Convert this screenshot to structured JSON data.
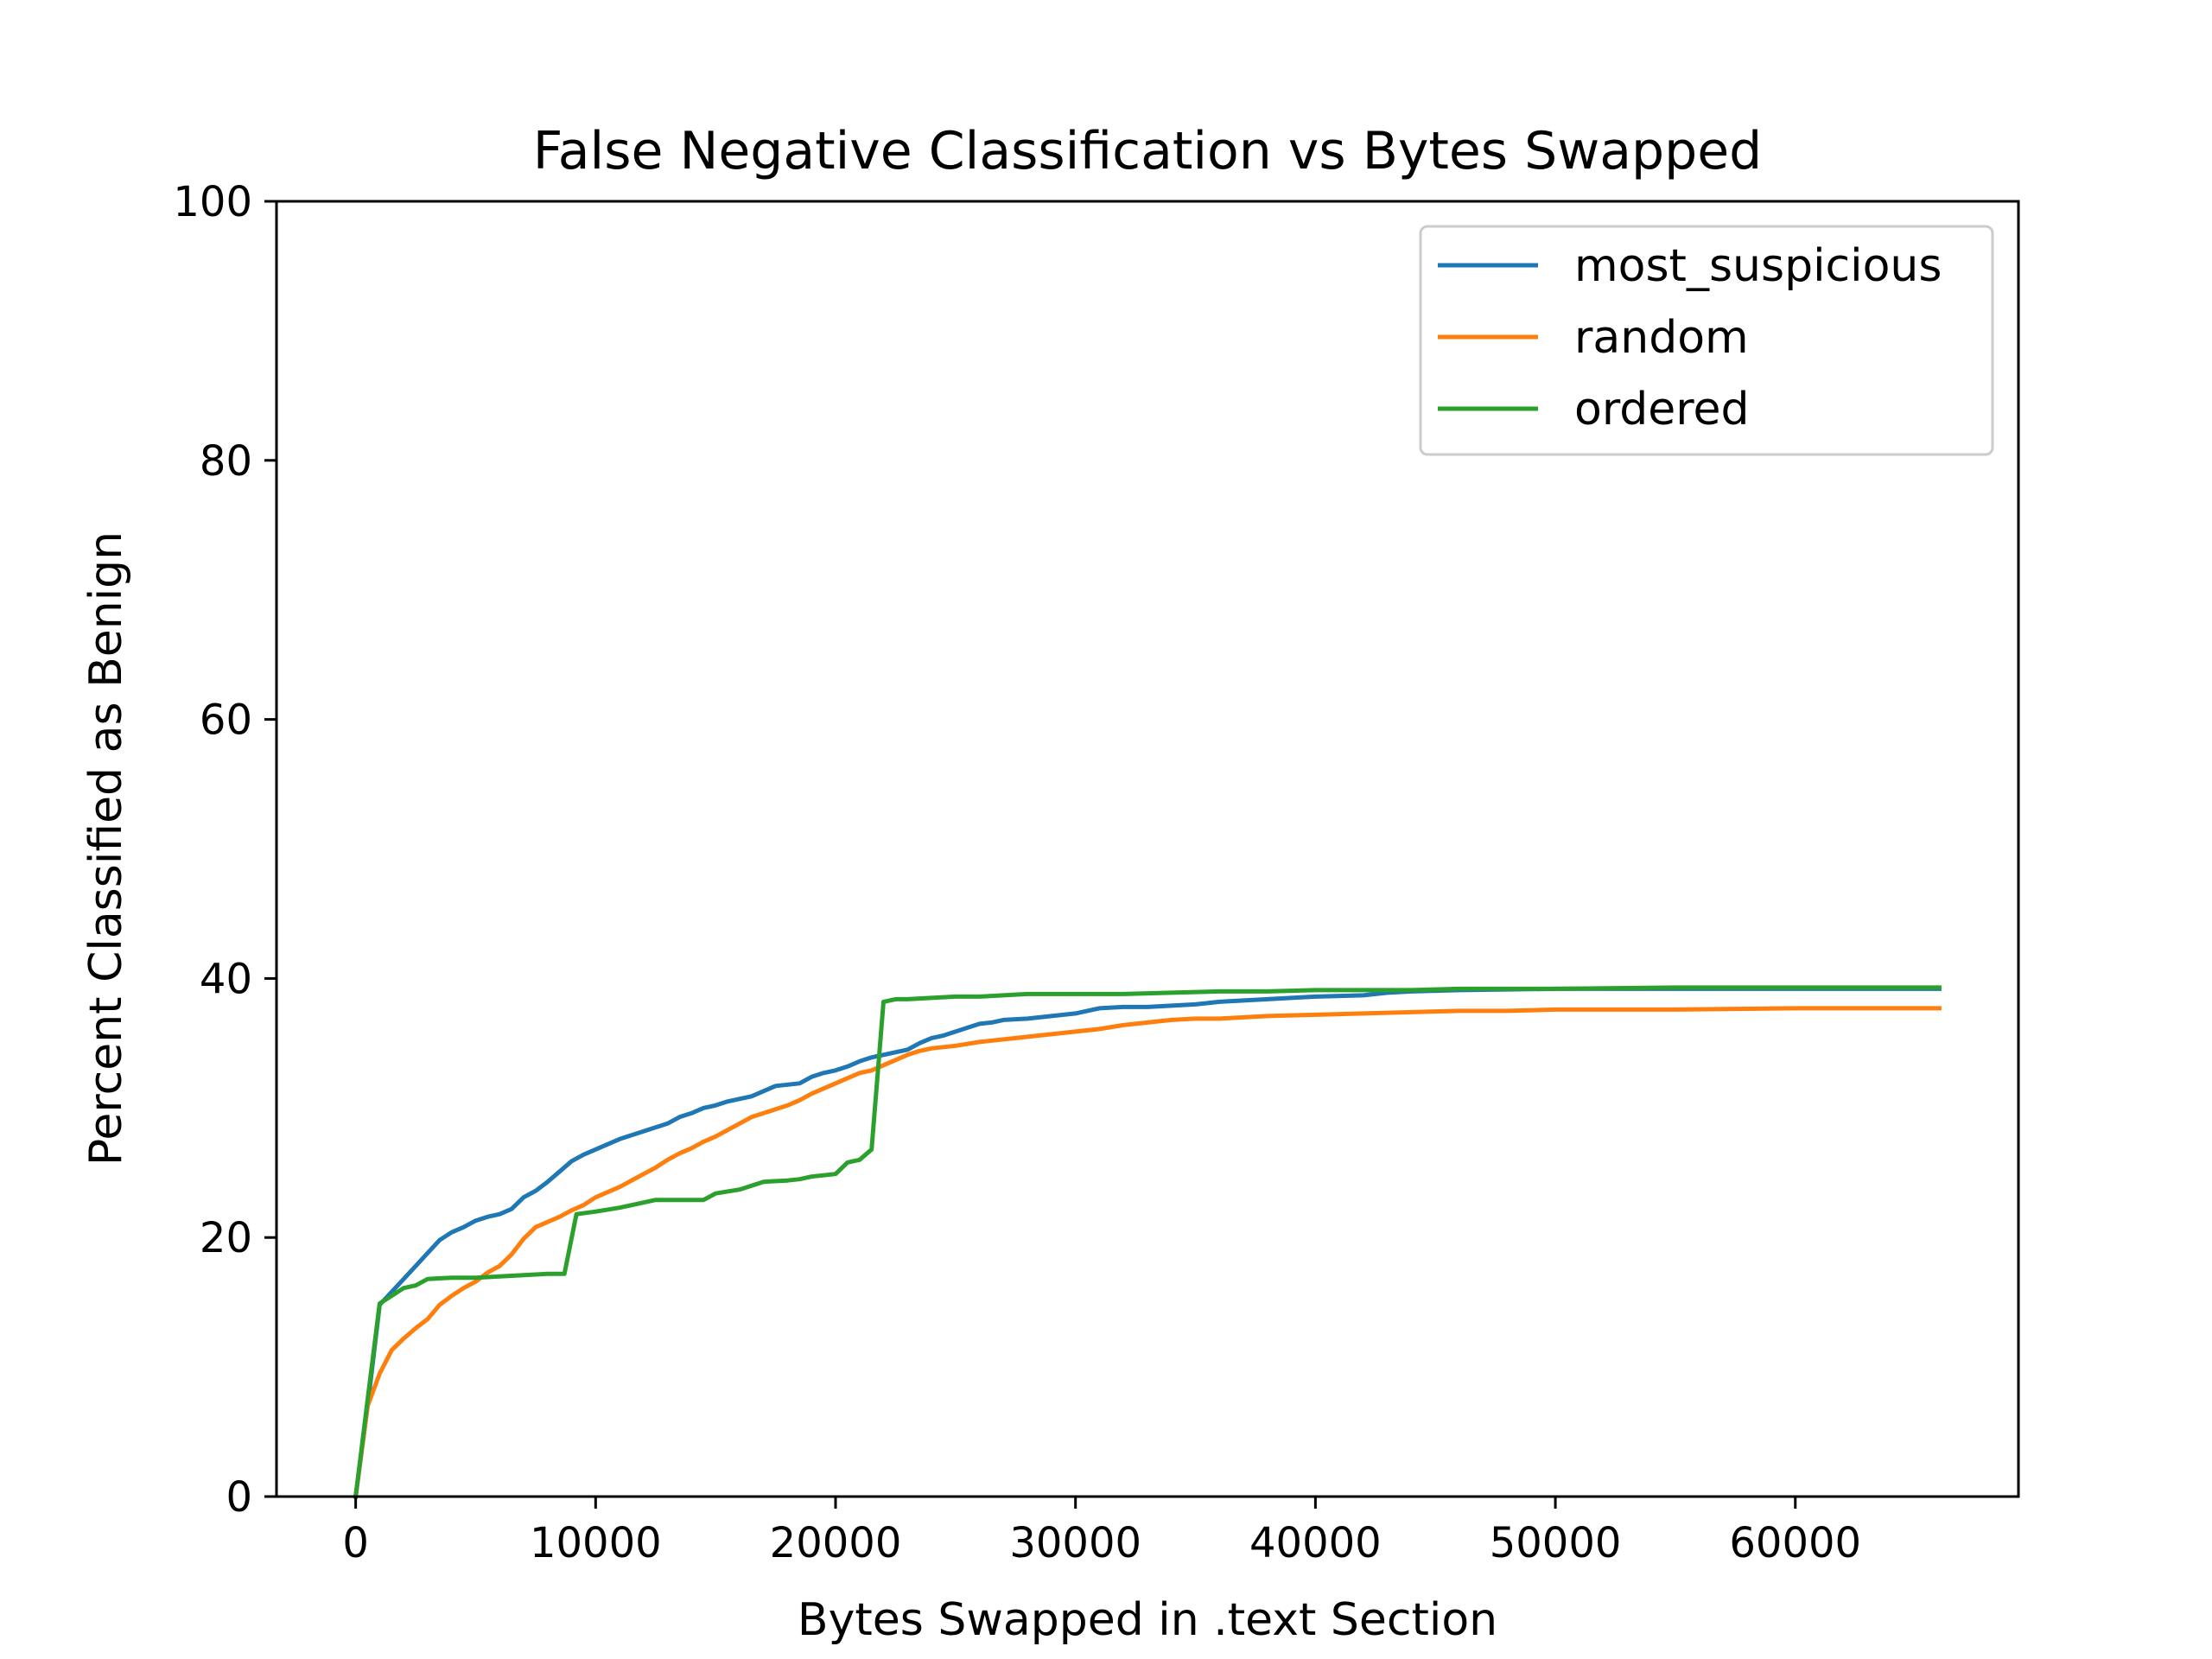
{
  "chart_data": {
    "type": "line",
    "title": "False Negative Classification vs Bytes Swapped",
    "xlabel": "Bytes Swapped in .text Section",
    "ylabel": "Percent Classified as Benign",
    "xlim": [
      -3300,
      69300
    ],
    "ylim": [
      0,
      100
    ],
    "xticks": [
      0,
      10000,
      20000,
      30000,
      40000,
      50000,
      60000
    ],
    "yticks": [
      0,
      20,
      40,
      60,
      80,
      100
    ],
    "grid": false,
    "legend_position": "upper right",
    "series": [
      {
        "name": "most_suspicious",
        "color": "#1f77b4",
        "x": [
          0,
          500,
          1000,
          1500,
          2000,
          2500,
          3000,
          3500,
          4000,
          4500,
          5000,
          5500,
          6000,
          6500,
          7000,
          7500,
          8000,
          8500,
          9000,
          9500,
          10000,
          10500,
          11000,
          11500,
          12000,
          12500,
          13000,
          13500,
          14000,
          14500,
          15000,
          15500,
          16000,
          16500,
          17000,
          17500,
          18000,
          18500,
          19000,
          19500,
          20000,
          20500,
          21000,
          21500,
          22000,
          22500,
          23000,
          23500,
          24000,
          24500,
          25000,
          25500,
          26000,
          26500,
          27000,
          28000,
          29000,
          29500,
          30000,
          31000,
          32000,
          33000,
          34000,
          35000,
          36000,
          37000,
          38000,
          39000,
          40000,
          42000,
          43000,
          44000,
          46000,
          50000,
          55000,
          60000,
          66000
        ],
        "y": [
          0,
          7,
          14.8,
          15.8,
          16.8,
          17.8,
          18.8,
          19.8,
          20.4,
          20.8,
          21.3,
          21.6,
          21.8,
          22.2,
          23.1,
          23.6,
          24.3,
          25.1,
          25.9,
          26.4,
          26.8,
          27.2,
          27.6,
          27.9,
          28.2,
          28.5,
          28.8,
          29.3,
          29.6,
          30,
          30.2,
          30.5,
          30.7,
          30.9,
          31.3,
          31.7,
          31.8,
          31.9,
          32.4,
          32.7,
          32.9,
          33.2,
          33.6,
          33.9,
          34.1,
          34.3,
          34.5,
          35,
          35.4,
          35.6,
          35.9,
          36.2,
          36.5,
          36.6,
          36.8,
          36.9,
          37.1,
          37.2,
          37.3,
          37.7,
          37.8,
          37.8,
          37.9,
          38,
          38.2,
          38.3,
          38.4,
          38.5,
          38.6,
          38.7,
          38.9,
          39,
          39.1,
          39.2,
          39.2,
          39.2,
          39.2
        ]
      },
      {
        "name": "random",
        "color": "#ff7f0e",
        "x": [
          0,
          500,
          1000,
          1500,
          2000,
          2500,
          3000,
          3500,
          4000,
          4500,
          5000,
          5500,
          6000,
          6500,
          7000,
          7500,
          8000,
          8500,
          9000,
          9500,
          10000,
          10500,
          11000,
          11500,
          12000,
          12500,
          13000,
          13500,
          14000,
          14500,
          15000,
          15500,
          16000,
          16500,
          17000,
          17500,
          18000,
          18500,
          19000,
          19500,
          20000,
          20500,
          21000,
          21500,
          22000,
          22500,
          23000,
          23500,
          24000,
          24500,
          25000,
          26000,
          27000,
          28000,
          29000,
          30000,
          31000,
          32000,
          33000,
          34000,
          35000,
          36000,
          37000,
          38000,
          40000,
          42000,
          44000,
          46000,
          48000,
          50000,
          55000,
          60000,
          66000
        ],
        "y": [
          0,
          7,
          9.5,
          11.3,
          12.2,
          13,
          13.7,
          14.8,
          15.5,
          16.1,
          16.6,
          17.3,
          17.8,
          18.7,
          19.9,
          20.8,
          21.2,
          21.6,
          22.1,
          22.5,
          23.1,
          23.5,
          23.9,
          24.4,
          24.9,
          25.4,
          26,
          26.5,
          26.9,
          27.4,
          27.8,
          28.3,
          28.8,
          29.3,
          29.6,
          29.9,
          30.2,
          30.6,
          31.1,
          31.5,
          31.9,
          32.3,
          32.7,
          32.9,
          33.3,
          33.7,
          34.1,
          34.4,
          34.6,
          34.7,
          34.8,
          35.1,
          35.3,
          35.5,
          35.7,
          35.9,
          36.1,
          36.4,
          36.6,
          36.8,
          36.9,
          36.9,
          37,
          37.1,
          37.2,
          37.3,
          37.4,
          37.5,
          37.5,
          37.6,
          37.6,
          37.7,
          37.7
        ]
      },
      {
        "name": "ordered",
        "color": "#2ca02c",
        "x": [
          0,
          500,
          1000,
          1500,
          2000,
          2500,
          3000,
          4000,
          5000,
          6000,
          7000,
          8000,
          8700,
          9200,
          10000,
          11000,
          12000,
          12500,
          13000,
          14000,
          14500,
          15000,
          16000,
          16500,
          17000,
          18000,
          18500,
          19000,
          20000,
          20500,
          21000,
          21500,
          22000,
          22500,
          23000,
          24000,
          25000,
          26000,
          27000,
          28000,
          30000,
          32000,
          34000,
          36000,
          38000,
          40000,
          42000,
          44000,
          46000,
          50000,
          55000,
          60000,
          66000
        ],
        "y": [
          0,
          7.5,
          14.9,
          15.5,
          16.1,
          16.3,
          16.8,
          16.9,
          16.9,
          17,
          17.1,
          17.2,
          17.2,
          21.8,
          22,
          22.3,
          22.7,
          22.9,
          22.9,
          22.9,
          22.9,
          23.4,
          23.7,
          24,
          24.3,
          24.4,
          24.5,
          24.7,
          24.9,
          25.8,
          26,
          26.8,
          38.2,
          38.4,
          38.4,
          38.5,
          38.6,
          38.6,
          38.7,
          38.8,
          38.8,
          38.8,
          38.9,
          39,
          39,
          39.1,
          39.1,
          39.1,
          39.2,
          39.2,
          39.3,
          39.3,
          39.3
        ]
      }
    ]
  }
}
